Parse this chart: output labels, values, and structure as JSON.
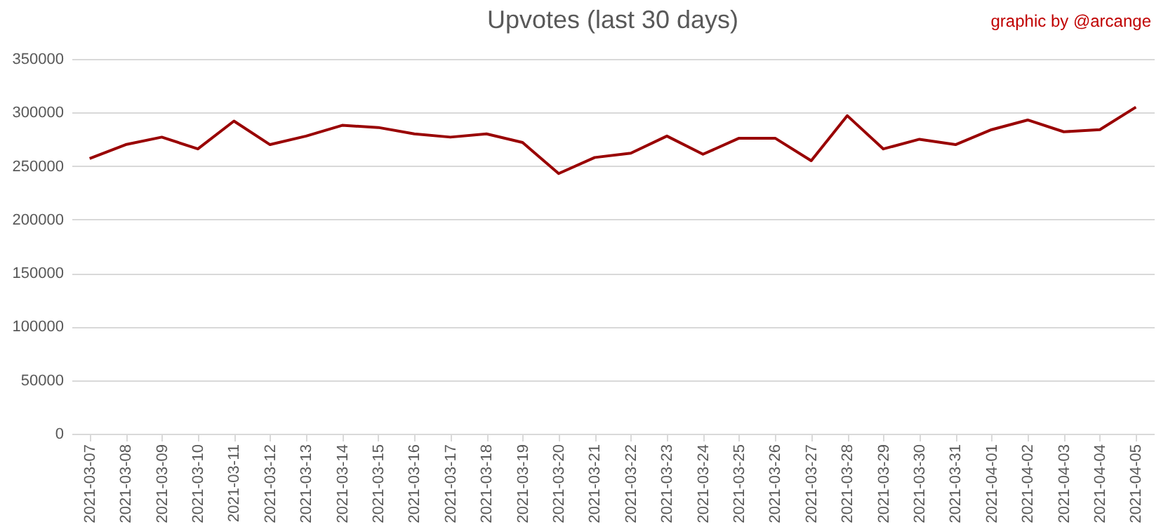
{
  "chart_data": {
    "type": "line",
    "title": "Upvotes (last 30 days)",
    "annotations": [
      "graphic by @arcange"
    ],
    "categories": [
      "2021-03-07",
      "2021-03-08",
      "2021-03-09",
      "2021-03-10",
      "2021-03-11",
      "2021-03-12",
      "2021-03-13",
      "2021-03-14",
      "2021-03-15",
      "2021-03-16",
      "2021-03-17",
      "2021-03-18",
      "2021-03-19",
      "2021-03-20",
      "2021-03-21",
      "2021-03-22",
      "2021-03-23",
      "2021-03-24",
      "2021-03-25",
      "2021-03-26",
      "2021-03-27",
      "2021-03-28",
      "2021-03-29",
      "2021-03-30",
      "2021-03-31",
      "2021-04-01",
      "2021-04-02",
      "2021-04-03",
      "2021-04-04",
      "2021-04-05"
    ],
    "series": [
      {
        "color": "#990000",
        "values": [
          257000,
          270000,
          277000,
          266000,
          292000,
          270000,
          278000,
          288000,
          286000,
          280000,
          277000,
          280000,
          272000,
          243000,
          258000,
          262000,
          278000,
          261000,
          276000,
          276000,
          255000,
          297000,
          266000,
          275000,
          270000,
          284000,
          293000,
          282000,
          284000,
          305000
        ]
      }
    ],
    "ylim": [
      0,
      350000
    ],
    "yticks": [
      0,
      50000,
      100000,
      150000,
      200000,
      250000,
      300000,
      350000
    ],
    "grid": "y",
    "legend": false,
    "marker": "none",
    "line_style": "solid"
  }
}
